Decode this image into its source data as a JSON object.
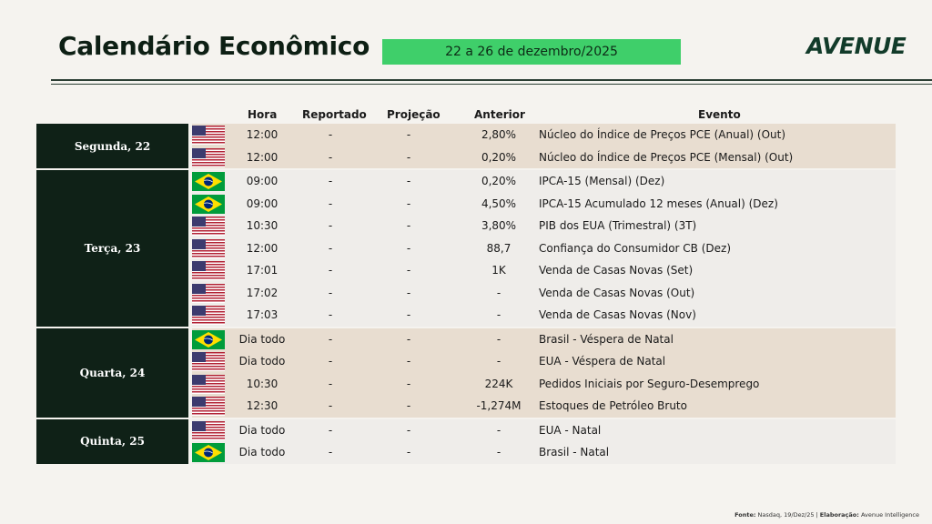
{
  "title": "Calendário Econômico",
  "date_range": "22 a 26 de dezembro/2025",
  "logo": "AVENUE",
  "headers": {
    "hora": "Hora",
    "reportado": "Reportado",
    "projecao": "Projeção",
    "anterior": "Anterior",
    "evento": "Evento"
  },
  "groups": [
    {
      "day": "Segunda, 22",
      "shade": "tan",
      "rows": [
        {
          "flag": "us",
          "hora": "12:00",
          "reportado": "-",
          "projecao": "-",
          "anterior": "2,80%",
          "evento": "Núcleo do Índice de Preços PCE (Anual) (Out)"
        },
        {
          "flag": "us",
          "hora": "12:00",
          "reportado": "-",
          "projecao": "-",
          "anterior": "0,20%",
          "evento": "Núcleo do Índice de Preços PCE (Mensal) (Out)"
        }
      ]
    },
    {
      "day": "Terça, 23",
      "shade": "light",
      "rows": [
        {
          "flag": "br",
          "hora": "09:00",
          "reportado": "-",
          "projecao": "-",
          "anterior": "0,20%",
          "evento": "IPCA-15 (Mensal) (Dez)"
        },
        {
          "flag": "br",
          "hora": "09:00",
          "reportado": "-",
          "projecao": "-",
          "anterior": "4,50%",
          "evento": "IPCA-15 Acumulado 12 meses (Anual) (Dez)"
        },
        {
          "flag": "us",
          "hora": "10:30",
          "reportado": "-",
          "projecao": "-",
          "anterior": "3,80%",
          "evento": "PIB dos EUA (Trimestral) (3T)"
        },
        {
          "flag": "us",
          "hora": "12:00",
          "reportado": "-",
          "projecao": "-",
          "anterior": "88,7",
          "evento": "Confiança do Consumidor CB (Dez)"
        },
        {
          "flag": "us",
          "hora": "17:01",
          "reportado": "-",
          "projecao": "-",
          "anterior": "1K",
          "evento": "Venda de Casas Novas (Set)"
        },
        {
          "flag": "us",
          "hora": "17:02",
          "reportado": "-",
          "projecao": "-",
          "anterior": "-",
          "evento": "Venda de Casas Novas (Out)"
        },
        {
          "flag": "us",
          "hora": "17:03",
          "reportado": "-",
          "projecao": "-",
          "anterior": "-",
          "evento": "Venda de Casas Novas (Nov)"
        }
      ]
    },
    {
      "day": "Quarta, 24",
      "shade": "tan",
      "rows": [
        {
          "flag": "br",
          "hora": "Dia todo",
          "reportado": "-",
          "projecao": "-",
          "anterior": "-",
          "evento": "Brasil - Véspera de Natal"
        },
        {
          "flag": "us",
          "hora": "Dia todo",
          "reportado": "-",
          "projecao": "-",
          "anterior": "-",
          "evento": "EUA - Véspera de Natal"
        },
        {
          "flag": "us",
          "hora": "10:30",
          "reportado": "-",
          "projecao": "-",
          "anterior": "224K",
          "evento": "Pedidos Iniciais por Seguro-Desemprego"
        },
        {
          "flag": "us",
          "hora": "12:30",
          "reportado": "-",
          "projecao": "-",
          "anterior": "-1,274M",
          "evento": "Estoques de Petróleo Bruto"
        }
      ]
    },
    {
      "day": "Quinta, 25",
      "shade": "light",
      "rows": [
        {
          "flag": "us",
          "hora": "Dia todo",
          "reportado": "-",
          "projecao": "-",
          "anterior": "-",
          "evento": "EUA - Natal"
        },
        {
          "flag": "br",
          "hora": "Dia todo",
          "reportado": "-",
          "projecao": "-",
          "anterior": "-",
          "evento": "Brasil - Natal"
        }
      ]
    }
  ],
  "footer": {
    "fonte_label": "Fonte:",
    "fonte_value": "Nasdaq, 19/Dez/25",
    "elab_label": "Elaboração:",
    "elab_value": "Avenue Intelligence"
  }
}
